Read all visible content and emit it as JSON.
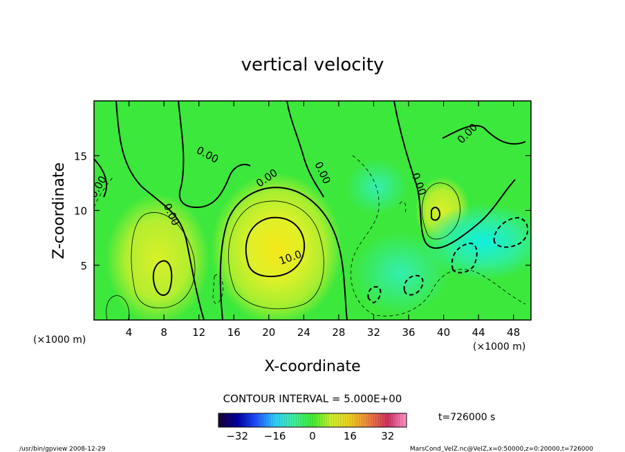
{
  "chart_data": {
    "type": "heatmap",
    "title": "vertical velocity",
    "xlabel": "X-coordinate",
    "ylabel": "Z-coordinate",
    "x_unit": "(×1000 m)",
    "y_unit": "(×1000 m)",
    "xlim": [
      0,
      50
    ],
    "ylim": [
      0,
      20
    ],
    "x_ticks": [
      4,
      8,
      12,
      16,
      20,
      24,
      28,
      32,
      36,
      40,
      44,
      48
    ],
    "y_ticks": [
      5,
      10,
      15
    ],
    "contour_interval_text": "CONTOUR INTERVAL = 5.000E+00",
    "time_text": "t=726000 s",
    "colorbar": {
      "range": [
        -40,
        40
      ],
      "ticks": [
        -32,
        -16,
        0,
        16,
        32
      ],
      "colors": [
        "#1a0033",
        "#0000a0",
        "#2050ff",
        "#30d0ff",
        "#40f0a0",
        "#40ee30",
        "#d0f030",
        "#f0d020",
        "#f08040",
        "#d03060",
        "#ff9ad0"
      ]
    },
    "contour_labels": [
      {
        "text": "0.00",
        "x": 0.8,
        "z": 12.0,
        "angle": -60
      },
      {
        "text": "0.00",
        "x": 12.8,
        "z": 14.8,
        "angle": 28
      },
      {
        "text": "0.00",
        "x": 8.5,
        "z": 9.5,
        "angle": 65
      },
      {
        "text": "0.00",
        "x": 20.0,
        "z": 12.7,
        "angle": -35
      },
      {
        "text": "0.00",
        "x": 25.8,
        "z": 13.3,
        "angle": 65
      },
      {
        "text": "0.00",
        "x": 36.8,
        "z": 12.3,
        "angle": 70
      },
      {
        "text": "0.00",
        "x": 43.0,
        "z": 16.8,
        "angle": -45
      },
      {
        "text": "10.0",
        "x": 22.6,
        "z": 5.4,
        "angle": -20
      }
    ]
  },
  "footer": {
    "left": "/usr/bin/gpview   2008-12-29",
    "right": "MarsCond_VelZ.nc@VelZ,x=0:50000,z=0:20000,t=726000"
  },
  "colors": {
    "background_field": "#3ce83c",
    "positive_core": "#f0f020",
    "negative_core": "#20f0d0"
  }
}
